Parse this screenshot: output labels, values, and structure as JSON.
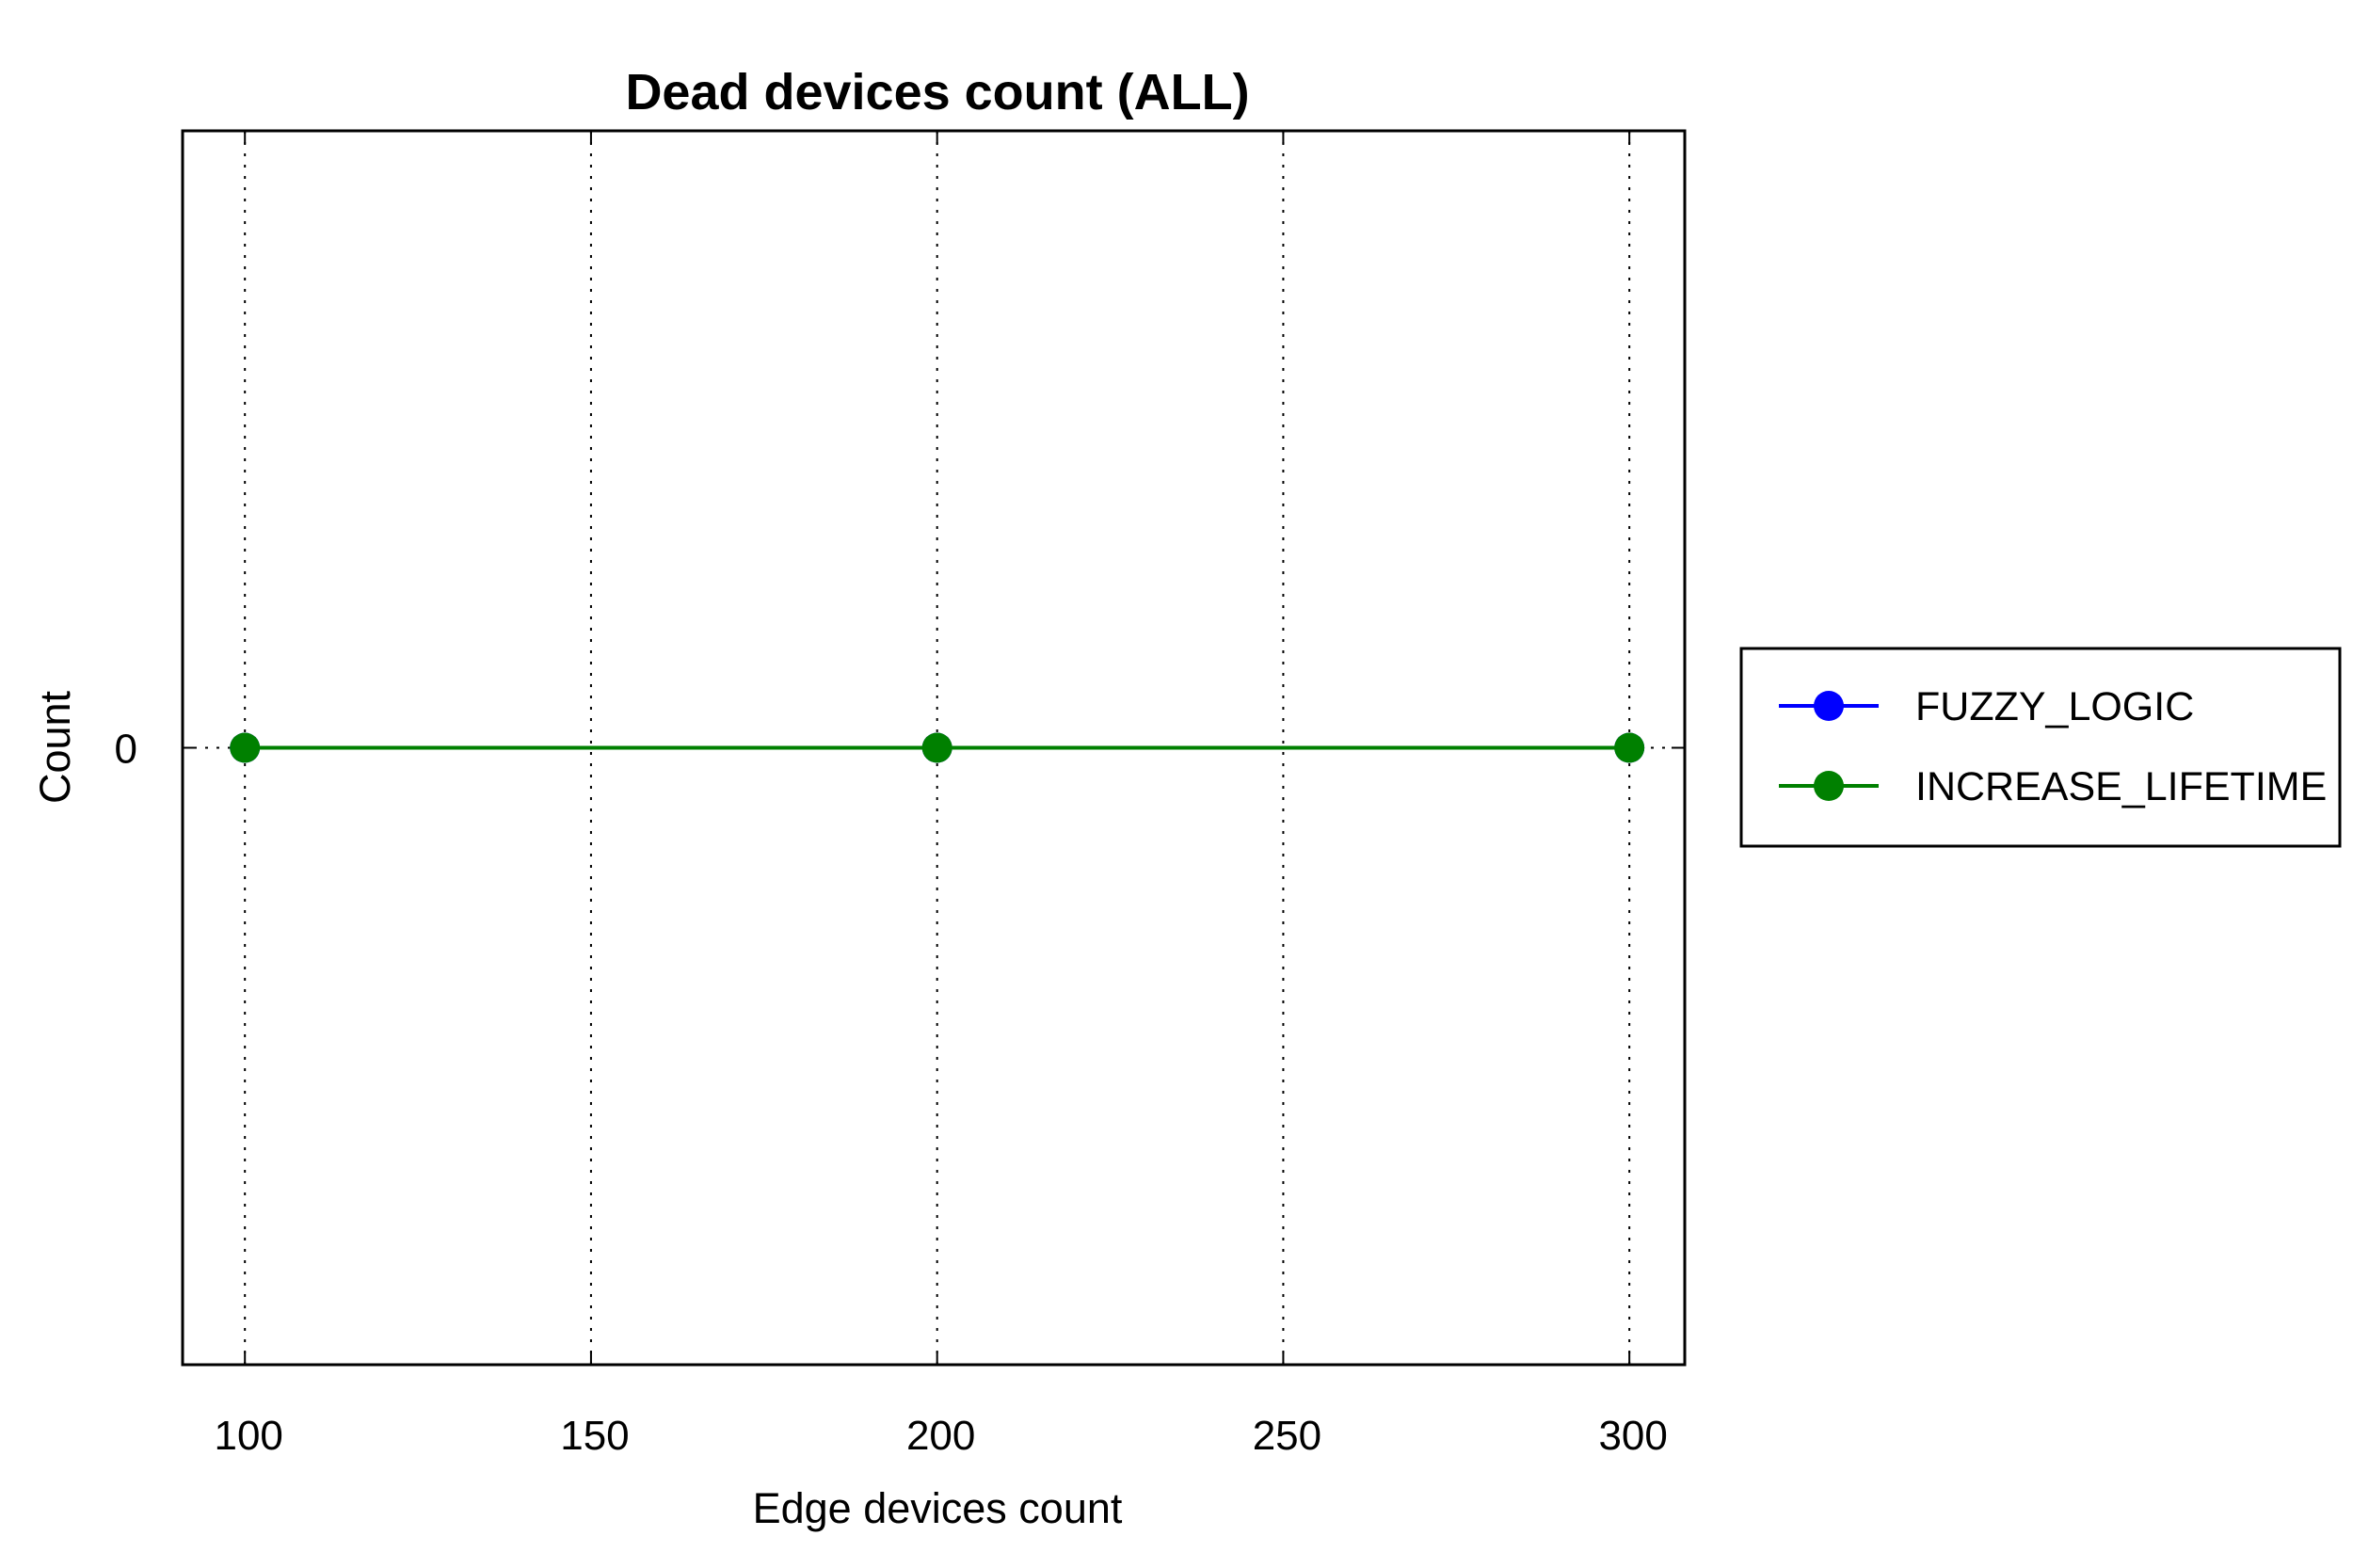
{
  "chart_data": {
    "type": "line",
    "title": "Dead devices count (ALL)",
    "xlabel": "Edge devices count",
    "ylabel": "Count",
    "x": [
      100,
      200,
      300
    ],
    "xticks": [
      "100",
      "150",
      "200",
      "250",
      "300"
    ],
    "xtick_values": [
      100,
      150,
      200,
      250,
      300
    ],
    "yticks": [
      "0"
    ],
    "ytick_values": [
      0
    ],
    "xlim": [
      91,
      308
    ],
    "ylim": [
      -1,
      1
    ],
    "grid": "x-dotted",
    "legend_position": "right",
    "series": [
      {
        "name": "FUZZY_LOGIC",
        "values": [
          0,
          0,
          0
        ],
        "color": "#0000ff"
      },
      {
        "name": "INCREASE_LIFETIME",
        "values": [
          0,
          0,
          0
        ],
        "color": "#008000"
      }
    ]
  }
}
